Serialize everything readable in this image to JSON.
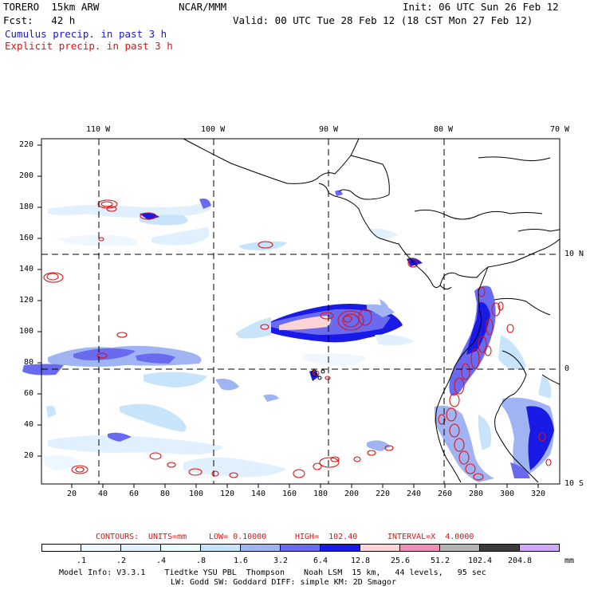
{
  "header": {
    "model": "TORERO  15km ARW",
    "org": "NCAR/MMM",
    "init": "Init: 06 UTC Sun 26 Feb 12",
    "fcst": "Fcst:   42 h",
    "valid": "Valid: 00 UTC Tue 28 Feb 12 (18 CST Mon 27 Feb 12)",
    "field1": "Cumulus precip. in past 3 h",
    "field2": "Explicit precip. in past 3 h"
  },
  "map": {
    "lon_labels": [
      "110 W",
      "100 W",
      "90 W",
      "80 W",
      "70 W"
    ],
    "lat_labels": [
      "10 N",
      "0",
      "10 S"
    ],
    "y_ticks": [
      "220",
      "200",
      "180",
      "160",
      "140",
      "120",
      "100",
      "80",
      "60",
      "40",
      "20"
    ],
    "x_ticks": [
      "20",
      "40",
      "60",
      "80",
      "100",
      "120",
      "140",
      "160",
      "180",
      "200",
      "220",
      "240",
      "260",
      "280",
      "300",
      "320"
    ]
  },
  "contours": {
    "label": "CONTOURS:",
    "units": "UNITS=mm",
    "low": "LOW= 0.10000",
    "high": "HIGH=  102.40",
    "interval": "INTERVAL=X  4.0000"
  },
  "colorbar": {
    "labels": [
      ".1",
      ".2",
      ".4",
      ".8",
      "1.6",
      "3.2",
      "6.4",
      "12.8",
      "25.6",
      "51.2",
      "102.4",
      "204.8"
    ],
    "unit": "mm",
    "colors": [
      "#ffffff",
      "#eef6ff",
      "#e0f0ff",
      "#e8fcfc",
      "#c8e4fa",
      "#a0b4f4",
      "#6a6af0",
      "#1a1ae6",
      "#ffd4d8",
      "#f090b8",
      "#b4b4b4",
      "#3c3c3c",
      "#d0a8f8"
    ]
  },
  "footer": {
    "line1": "Model Info: V3.3.1    Tiedtke YSU PBL  Thompson    Noah LSM  15 km,   44 levels,   95 sec",
    "line2": "LW: Godd SW: Goddard DIFF: simple KM: 2D Smagor"
  }
}
